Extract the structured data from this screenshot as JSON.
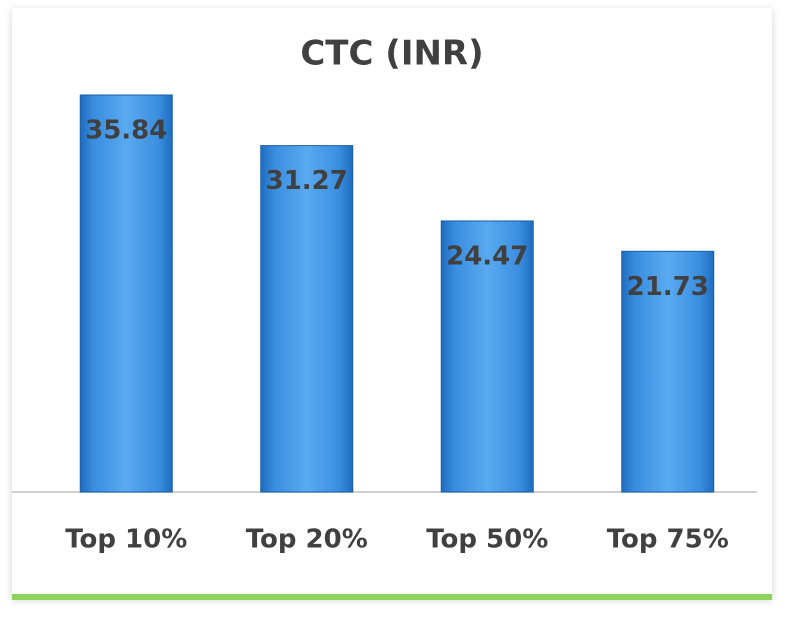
{
  "chart_data": {
    "type": "bar",
    "title": "CTC (INR)",
    "categories": [
      "Top 10%",
      "Top 20%",
      "Top 50%",
      "Top 75%"
    ],
    "values": [
      35.84,
      31.27,
      24.47,
      21.73
    ],
    "color": "#3a8ee0"
  }
}
